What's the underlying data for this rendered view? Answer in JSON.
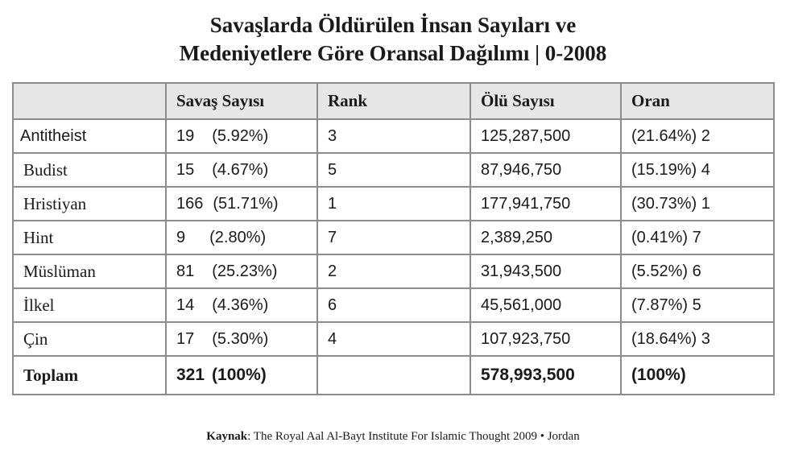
{
  "title_line1": "Savaşlarda Öldürülen İnsan Sayıları ve",
  "title_line2": "Medeniyetlere Göre Oransal Dağılımı | 0-2008",
  "chart_data": {
    "type": "table",
    "columns": [
      "",
      "Savaş Sayısı",
      "Rank",
      "Ölü Sayısı",
      "Oran"
    ],
    "rows": [
      {
        "name": "Antitheist",
        "wars": "19",
        "wars_pct": "(5.92%)",
        "rank": "3",
        "deaths": "125,287,500",
        "ratio": "(21.64%) 2"
      },
      {
        "name": "Budist",
        "wars": "15",
        "wars_pct": "(4.67%)",
        "rank": "5",
        "deaths": "87,946,750",
        "ratio": "(15.19%) 4"
      },
      {
        "name": "Hristiyan",
        "wars": "166",
        "wars_pct": "(51.71%)",
        "rank": "1",
        "deaths": "177,941,750",
        "ratio": "(30.73%) 1"
      },
      {
        "name": "Hint",
        "wars": "9",
        "wars_pct": "(2.80%)",
        "rank": "7",
        "deaths": "2,389,250",
        "ratio": "(0.41%) 7"
      },
      {
        "name": "Müslüman",
        "wars": "81",
        "wars_pct": "(25.23%)",
        "rank": "2",
        "deaths": "31,943,500",
        "ratio": "(5.52%) 6"
      },
      {
        "name": "İlkel",
        "wars": "14",
        "wars_pct": "(4.36%)",
        "rank": "6",
        "deaths": "45,561,000",
        "ratio": "(7.87%) 5"
      },
      {
        "name": "Çin",
        "wars": "17",
        "wars_pct": "(5.30%)",
        "rank": "4",
        "deaths": "107,923,750",
        "ratio": "(18.64%) 3"
      }
    ],
    "total": {
      "name": "Toplam",
      "wars": "321",
      "wars_pct": "(100%)",
      "rank": "",
      "deaths": "578,993,500",
      "ratio": "(100%)"
    }
  },
  "source": {
    "label": "Kaynak",
    "text": ": The Royal Aal Al-Bayt Institute For Islamic Thought 2009 • Jordan"
  },
  "colors": {
    "header_bg": "#e6e6e6",
    "border": "#8c8c8c"
  }
}
